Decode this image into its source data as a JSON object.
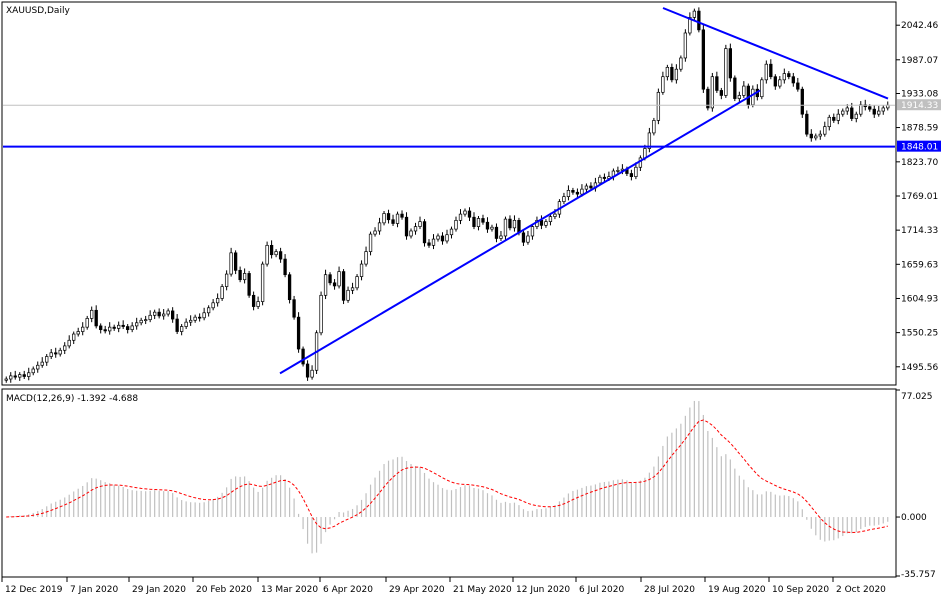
{
  "chart_data": [
    {
      "type": "candlestick",
      "title": "XAUUSD,Daily",
      "symbol": "XAUUSD",
      "timeframe": "Daily",
      "ylim": [
        1468.0,
        2078.0
      ],
      "y_tick_labels": [
        "2042.46",
        "1987.07",
        "1933.08",
        "1878.59",
        "1823.70",
        "1769.01",
        "1714.33",
        "1659.63",
        "1604.93",
        "1550.25",
        "1495.56"
      ],
      "x_tick_labels": [
        "12 Dec 2019",
        "7 Jan 2020",
        "29 Jan 2020",
        "20 Feb 2020",
        "13 Mar 2020",
        "6 Apr 2020",
        "29 Apr 2020",
        "21 May 2020",
        "12 Jun 2020",
        "6 Jul 2020",
        "28 Jul 2020",
        "19 Aug 2020",
        "10 Sep 2020",
        "2 Oct 2020"
      ],
      "current_price_label": "1914.33",
      "current_price": 1914.33,
      "horizontal_line_label": "1848.01",
      "horizontal_line": 1848.01,
      "series_closes": [
        1476,
        1481,
        1479,
        1483,
        1480,
        1486,
        1492,
        1498,
        1503,
        1512,
        1518,
        1516,
        1522,
        1529,
        1538,
        1548,
        1552,
        1559,
        1573,
        1586,
        1561,
        1555,
        1553,
        1559,
        1557,
        1562,
        1560,
        1555,
        1561,
        1566,
        1570,
        1571,
        1578,
        1583,
        1577,
        1580,
        1585,
        1572,
        1552,
        1560,
        1567,
        1570,
        1575,
        1574,
        1582,
        1590,
        1598,
        1605,
        1624,
        1644,
        1678,
        1650,
        1635,
        1645,
        1610,
        1592,
        1600,
        1660,
        1690,
        1675,
        1680,
        1668,
        1643,
        1603,
        1575,
        1524,
        1500,
        1479,
        1490,
        1550,
        1610,
        1643,
        1630,
        1625,
        1648,
        1602,
        1618,
        1622,
        1640,
        1660,
        1680,
        1708,
        1713,
        1726,
        1741,
        1731,
        1725,
        1740,
        1735,
        1705,
        1713,
        1720,
        1728,
        1694,
        1690,
        1700,
        1705,
        1697,
        1707,
        1716,
        1730,
        1740,
        1745,
        1735,
        1720,
        1733,
        1727,
        1716,
        1719,
        1701,
        1705,
        1732,
        1718,
        1730,
        1710,
        1695,
        1705,
        1720,
        1730,
        1722,
        1728,
        1736,
        1740,
        1760,
        1768,
        1778,
        1775,
        1772,
        1780,
        1785,
        1782,
        1790,
        1799,
        1797,
        1800,
        1809,
        1810,
        1812,
        1805,
        1800,
        1815,
        1830,
        1845,
        1870,
        1890,
        1935,
        1960,
        1975,
        1955,
        1972,
        1990,
        2030,
        2055,
        2065,
        2035,
        1940,
        1910,
        1960,
        1938,
        1930,
        2005,
        1958,
        1925,
        1930,
        1945,
        1915,
        1940,
        1928,
        1955,
        1980,
        1960,
        1945,
        1955,
        1965,
        1960,
        1950,
        1940,
        1900,
        1868,
        1862,
        1865,
        1868,
        1880,
        1895,
        1890,
        1900,
        1905,
        1910,
        1893,
        1900,
        1915,
        1912,
        1908,
        1900,
        1905,
        1910,
        1914.33
      ],
      "trendlines": [
        {
          "from": [
            "13 Mar 2020",
            1485
          ],
          "to": [
            "19 Aug 2020",
            1938
          ]
        },
        {
          "from": [
            "28 Jul 2020",
            2070
          ],
          "to": [
            "2 Oct 2020",
            1925
          ]
        }
      ]
    },
    {
      "type": "histogram+line",
      "title": "MACD(12,26,9) -1.392 -4.688",
      "indicator": "MACD(12,26,9)",
      "macd_value": -1.392,
      "signal_value": -4.688,
      "ylim": [
        -35.757,
        77.025
      ],
      "y_tick_labels": [
        "77.025",
        "0.000",
        "-35.757"
      ],
      "colors": {
        "histogram": "#c0c0c0",
        "signal": "#ff0000"
      }
    }
  ],
  "colors": {
    "up": "#000000",
    "down": "#000000",
    "trendline": "#0000ff",
    "hline": "#0000ff",
    "grid": "#000000",
    "price_marker": "#c0c0c0"
  }
}
